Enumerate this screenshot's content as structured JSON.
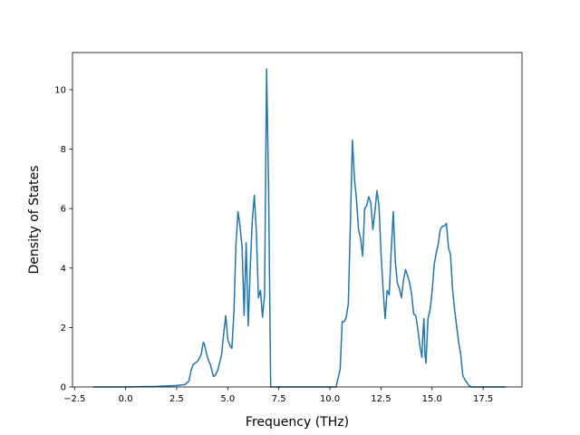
{
  "chart_data": {
    "type": "line",
    "title": "",
    "xlabel": "Frequency (THz)",
    "ylabel": "Density of States",
    "xlim": [
      -2.6,
      19.4
    ],
    "ylim": [
      0,
      11.25
    ],
    "grid": false,
    "legend": "none",
    "x_ticks": [
      -2.5,
      0.0,
      2.5,
      5.0,
      7.5,
      10.0,
      12.5,
      15.0,
      17.5
    ],
    "x_tick_labels": [
      "−2.5",
      "0.0",
      "2.5",
      "5.0",
      "7.5",
      "10.0",
      "12.5",
      "15.0",
      "17.5"
    ],
    "y_ticks": [
      0,
      2,
      4,
      6,
      8,
      10
    ],
    "y_tick_labels": [
      "0",
      "2",
      "4",
      "6",
      "8",
      "10"
    ],
    "colors": {
      "line": "#1f77b4",
      "axes": "#000000"
    },
    "series": [
      {
        "x": [
          -1.6,
          0.0,
          1.5,
          2.5,
          2.9,
          3.1,
          3.2,
          3.3,
          3.4,
          3.5,
          3.6,
          3.7,
          3.8,
          3.85,
          3.95,
          4.05,
          4.15,
          4.3,
          4.4,
          4.5,
          4.6,
          4.7,
          4.8,
          4.9,
          5.0,
          5.1,
          5.2,
          5.3,
          5.4,
          5.5,
          5.6,
          5.7,
          5.8,
          5.9,
          6.0,
          6.1,
          6.2,
          6.3,
          6.4,
          6.5,
          6.6,
          6.7,
          6.8,
          6.9,
          7.0,
          7.1,
          7.3,
          7.5,
          9.0,
          10.3,
          10.5,
          10.6,
          10.7,
          10.8,
          10.9,
          11.0,
          11.1,
          11.2,
          11.3,
          11.4,
          11.5,
          11.6,
          11.7,
          11.8,
          11.9,
          12.0,
          12.1,
          12.2,
          12.3,
          12.4,
          12.5,
          12.6,
          12.7,
          12.8,
          12.9,
          13.0,
          13.1,
          13.2,
          13.3,
          13.4,
          13.5,
          13.6,
          13.7,
          13.8,
          13.9,
          14.0,
          14.1,
          14.2,
          14.3,
          14.4,
          14.5,
          14.55,
          14.6,
          14.65,
          14.7,
          14.8,
          14.9,
          15.0,
          15.1,
          15.2,
          15.3,
          15.4,
          15.5,
          15.6,
          15.7,
          15.8,
          15.9,
          16.0,
          16.1,
          16.2,
          16.3,
          16.4,
          16.5,
          16.6,
          16.7,
          16.8,
          16.9,
          17.0,
          17.5,
          18.0,
          18.6
        ],
        "y": [
          0.0,
          0.0,
          0.02,
          0.05,
          0.08,
          0.2,
          0.55,
          0.75,
          0.8,
          0.85,
          0.95,
          1.1,
          1.5,
          1.45,
          1.15,
          0.9,
          0.75,
          0.35,
          0.4,
          0.55,
          0.8,
          1.1,
          1.8,
          2.4,
          1.6,
          1.4,
          1.3,
          2.5,
          4.8,
          5.9,
          5.4,
          4.7,
          2.4,
          4.85,
          2.05,
          4.0,
          5.6,
          6.45,
          5.2,
          3.0,
          3.25,
          2.35,
          3.1,
          10.7,
          6.5,
          0.0,
          0.0,
          0.0,
          0.0,
          0.0,
          0.6,
          2.2,
          2.2,
          2.35,
          2.8,
          5.5,
          8.3,
          7.0,
          6.3,
          5.3,
          5.0,
          4.4,
          6.0,
          6.1,
          6.4,
          6.2,
          5.3,
          5.9,
          6.6,
          6.1,
          4.5,
          3.3,
          2.3,
          3.25,
          3.1,
          4.6,
          5.9,
          4.2,
          3.5,
          3.3,
          3.0,
          3.6,
          3.95,
          3.75,
          3.5,
          3.1,
          2.45,
          2.4,
          1.95,
          1.4,
          1.0,
          1.8,
          2.3,
          1.1,
          0.8,
          2.3,
          2.6,
          3.2,
          4.1,
          4.5,
          4.8,
          5.3,
          5.4,
          5.42,
          5.5,
          4.7,
          4.45,
          3.3,
          2.6,
          2.05,
          1.5,
          1.1,
          0.4,
          0.25,
          0.15,
          0.05,
          0.0,
          0.0,
          0.0,
          0.0,
          0.0
        ]
      }
    ]
  }
}
